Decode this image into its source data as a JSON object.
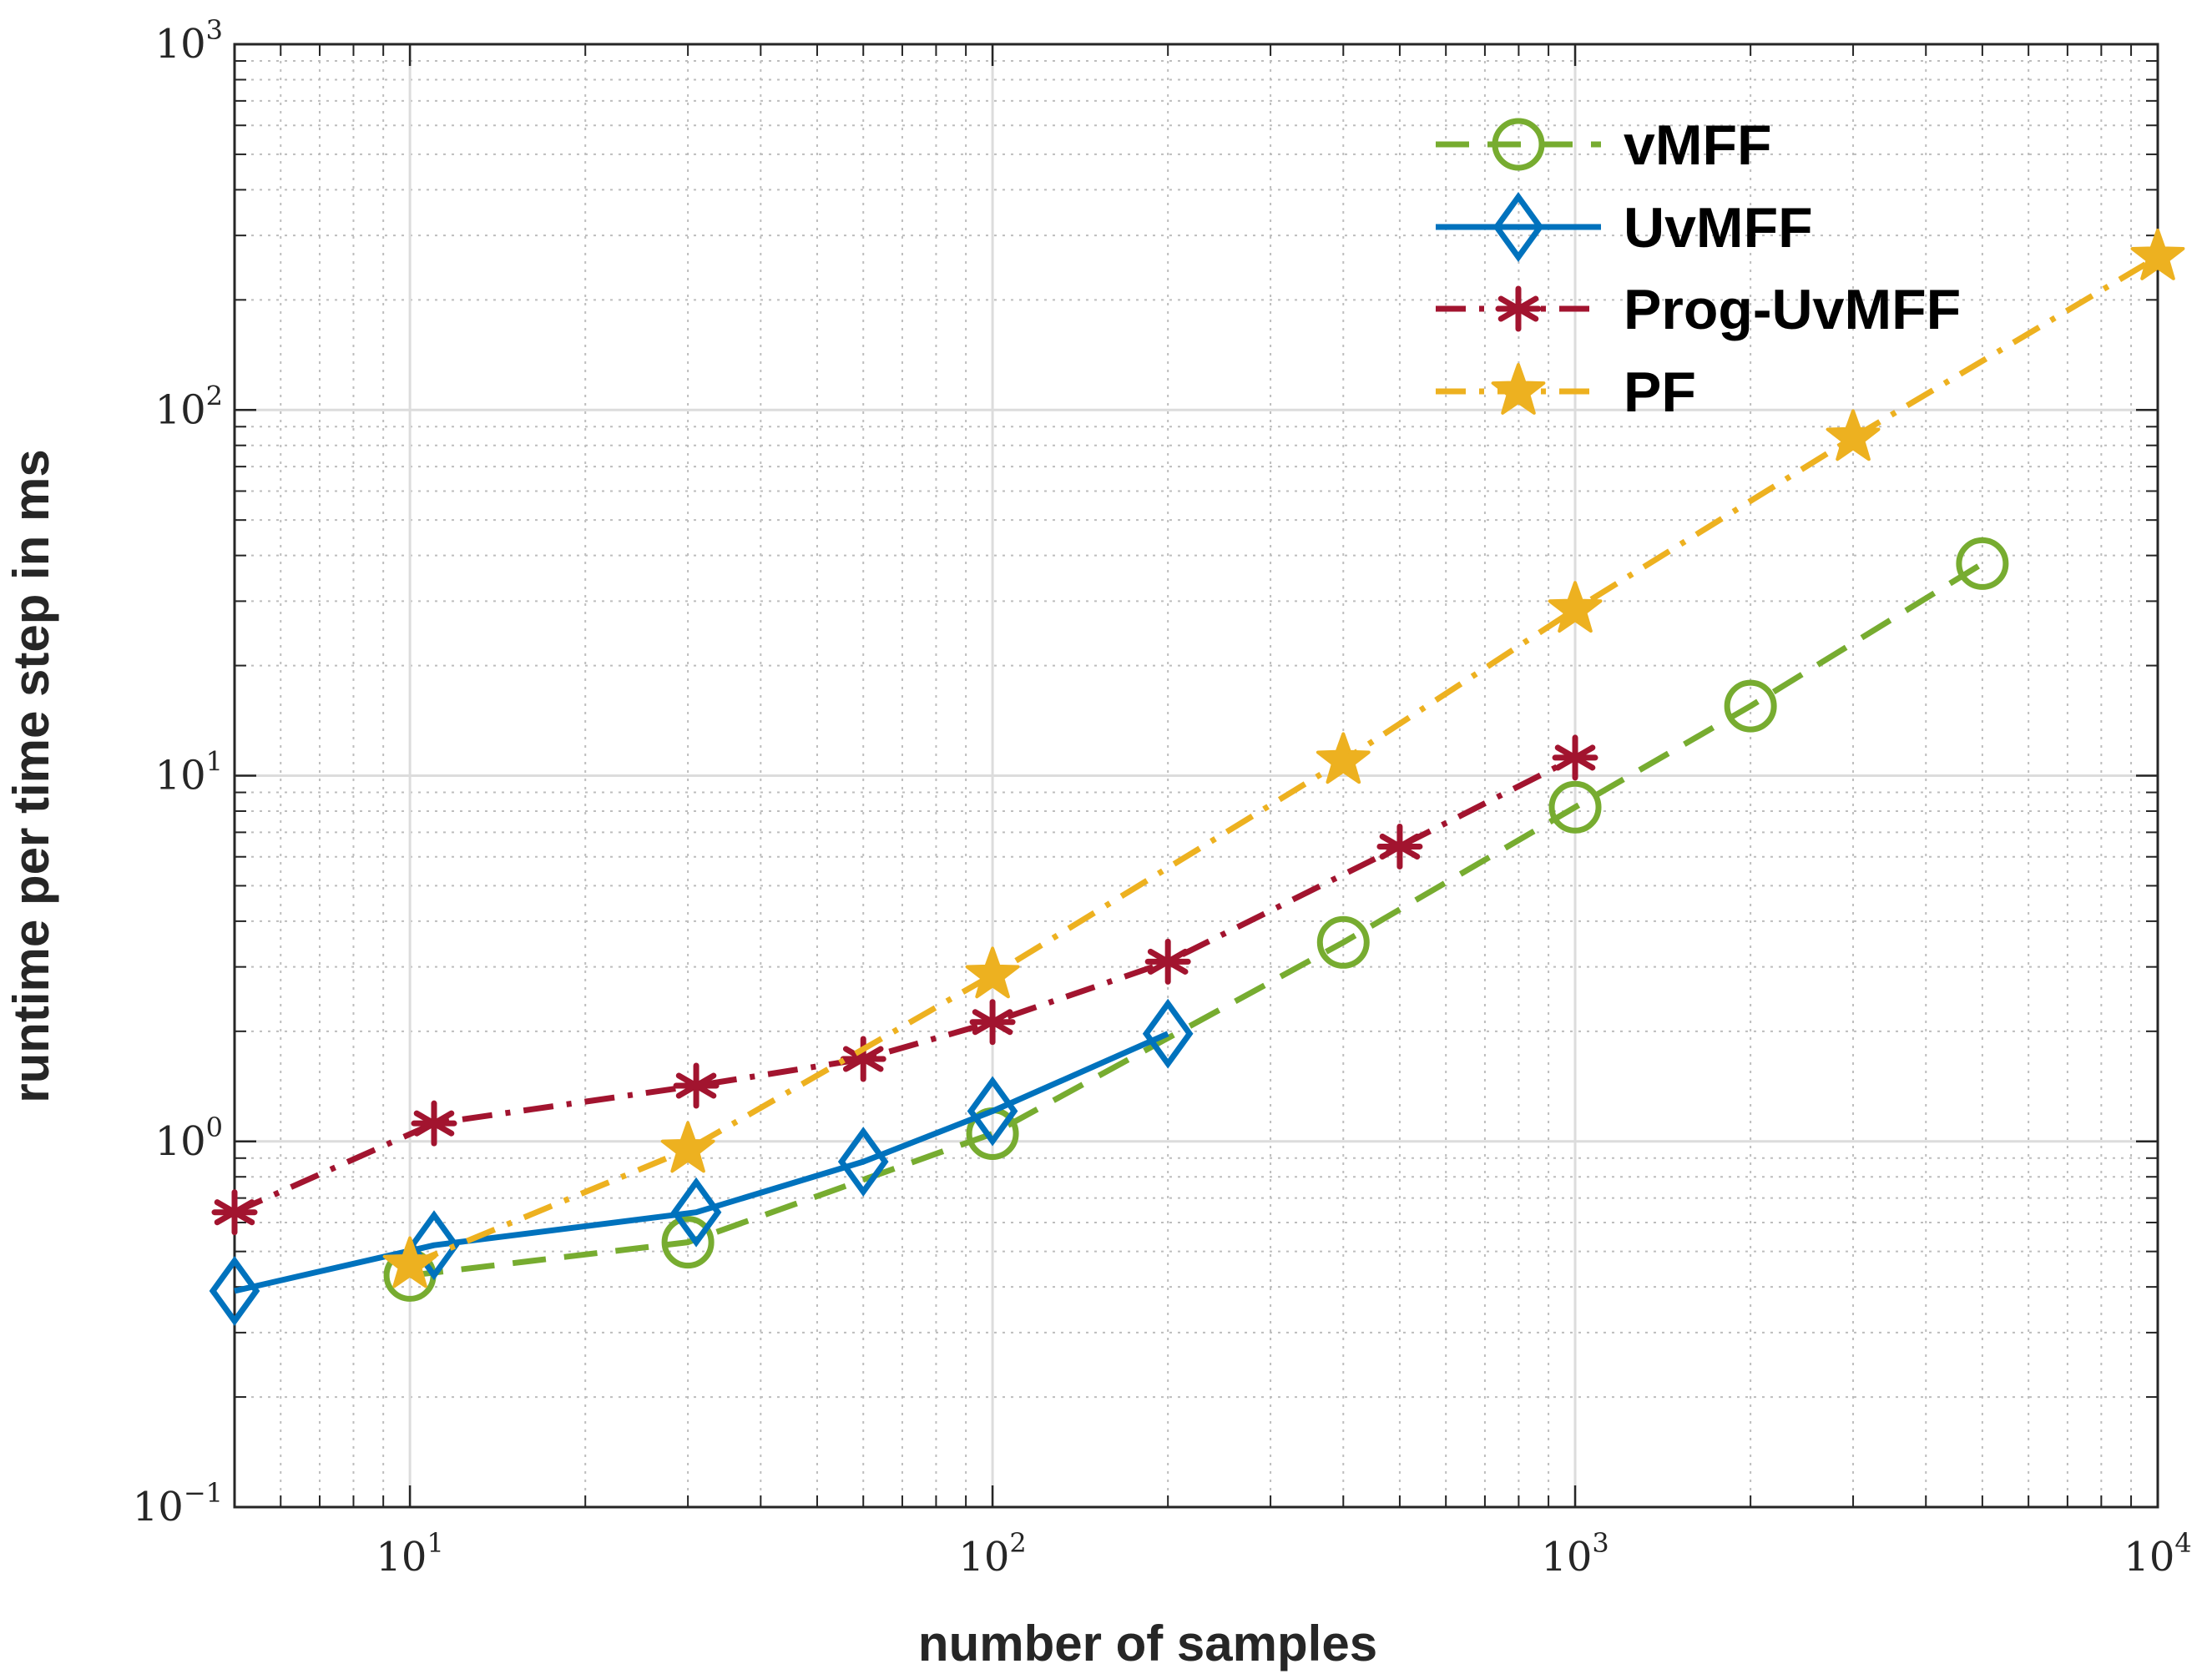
{
  "chart_data": {
    "type": "line",
    "title": "",
    "xlabel": "number of samples",
    "ylabel": "runtime per time step in ms",
    "xscale": "log",
    "yscale": "log",
    "xlim": [
      5,
      10000
    ],
    "ylim": [
      0.1,
      1000
    ],
    "grid": true,
    "minor_grid": true,
    "legend_position": "top-right",
    "x_ticks": [
      {
        "base": "10",
        "exp": "1",
        "value": 10
      },
      {
        "base": "10",
        "exp": "2",
        "value": 100
      },
      {
        "base": "10",
        "exp": "3",
        "value": 1000
      },
      {
        "base": "10",
        "exp": "4",
        "value": 10000
      }
    ],
    "y_ticks": [
      {
        "base": "10",
        "exp": "−1",
        "value": 0.1
      },
      {
        "base": "10",
        "exp": "0",
        "value": 1
      },
      {
        "base": "10",
        "exp": "1",
        "value": 10
      },
      {
        "base": "10",
        "exp": "2",
        "value": 100
      },
      {
        "base": "10",
        "exp": "3",
        "value": 1000
      }
    ],
    "series": [
      {
        "name": "vMFF",
        "color": "#77AC30",
        "line_style": "dashed",
        "marker": "circle",
        "x": [
          10,
          30,
          100,
          400,
          1000,
          2000,
          5000
        ],
        "y": [
          0.43,
          0.53,
          1.05,
          3.5,
          8.2,
          15.5,
          38
        ]
      },
      {
        "name": "UvMFF",
        "color": "#0072BD",
        "line_style": "solid",
        "marker": "diamond",
        "x": [
          5,
          11,
          31,
          60,
          100,
          200
        ],
        "y": [
          0.39,
          0.52,
          0.64,
          0.88,
          1.21,
          1.97
        ]
      },
      {
        "name": "Prog-UvMFF",
        "color": "#A2142F",
        "line_style": "dashdot",
        "marker": "asterisk",
        "x": [
          5,
          11,
          31,
          60,
          100,
          200,
          500,
          1000
        ],
        "y": [
          0.64,
          1.12,
          1.42,
          1.68,
          2.12,
          3.1,
          6.4,
          11.2
        ]
      },
      {
        "name": "PF",
        "color": "#EDB120",
        "line_style": "dashdot",
        "marker": "star",
        "x": [
          10,
          30,
          100,
          400,
          1000,
          3000,
          10000
        ],
        "y": [
          0.46,
          0.95,
          2.85,
          11,
          28.5,
          84,
          262
        ]
      }
    ]
  }
}
